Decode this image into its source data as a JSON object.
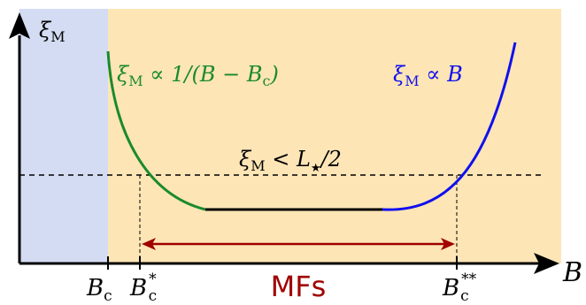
{
  "axes": {
    "y_label_main": "ξ",
    "y_label_sub": "M",
    "x_label": "B"
  },
  "ticks": [
    {
      "main": "B",
      "sub": "c",
      "sup": ""
    },
    {
      "main": "B",
      "sub": "c",
      "sup": "*"
    },
    {
      "main": "B",
      "sub": "c",
      "sup": "**"
    }
  ],
  "curves": {
    "green_formula": {
      "xi": "ξ",
      "sub": "M",
      "rest": " ∝ 1/(B − B",
      "sub2": "c",
      "close": ")"
    },
    "blue_formula": {
      "xi": "ξ",
      "sub": "M",
      "rest": " ∝ B"
    },
    "threshold_formula": {
      "xi": "ξ",
      "sub": "M",
      "rest": " < L",
      "sub2": "★",
      "close": "/2"
    }
  },
  "range_label": "MFs",
  "colors": {
    "blue_region": "#d3dcf2",
    "orange_region": "#fde5b6",
    "green_curve": "#1a8a2e",
    "black_curve": "#000000",
    "blue_curve": "#1010ee",
    "range_arrow": "#a00000",
    "range_text": "#a00000"
  }
}
